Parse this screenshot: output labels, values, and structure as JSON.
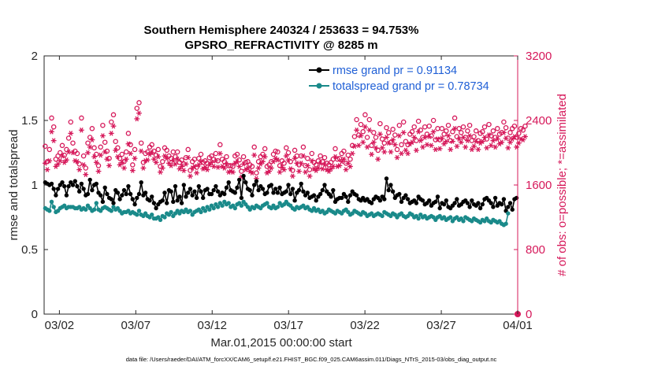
{
  "chart_data": {
    "type": "line",
    "title": "Southern Hemisphere 240324 / 253633 = 94.753%",
    "subtitle": "GPSRO_REFRACTIVITY @ 8285 m",
    "xlabel": "Mar.01,2015 00:00:00 start",
    "ylabel_left": "rmse and totalspread",
    "ylabel_right": "# of obs: o=possible; *=assimilated",
    "footer": "data file: /Users/raeder/DAI/ATM_forcXX/CAM6_setup/f.e21.FHIST_BGC.f09_025.CAM6assim.011/Diags_NTrS_2015-03/obs_diag_output.nc",
    "x_range": [
      0,
      31
    ],
    "x_ticks": [
      {
        "x": 1,
        "label": "03/02"
      },
      {
        "x": 6,
        "label": "03/07"
      },
      {
        "x": 11,
        "label": "03/12"
      },
      {
        "x": 16,
        "label": "03/17"
      },
      {
        "x": 21,
        "label": "03/22"
      },
      {
        "x": 26,
        "label": "03/27"
      },
      {
        "x": 31,
        "label": "04/01"
      }
    ],
    "ylim_left": [
      0,
      2
    ],
    "yticks_left": [
      "0",
      "0.5",
      "1",
      "1.5",
      "2"
    ],
    "ylim_right": [
      0,
      3200
    ],
    "yticks_right": [
      "0",
      "800",
      "1600",
      "2400",
      "3200"
    ],
    "grid": false,
    "legend_position": "top-right",
    "series": [
      {
        "name": "rmse grand pr = 0.91134",
        "color": "#000000",
        "axis": "left",
        "values": [
          1.02,
          1.01,
          1.0,
          1.01,
          0.97,
          0.92,
          0.97,
          1.0,
          1.02,
          0.99,
          0.92,
          0.99,
          1.02,
          1.0,
          1.03,
          0.99,
          0.95,
          1.01,
          0.97,
          0.92,
          0.93,
          1.04,
          0.96,
          1.0,
          1.01,
          0.94,
          0.92,
          0.87,
          0.98,
          0.93,
          0.9,
          0.89,
          0.86,
          0.96,
          0.94,
          0.89,
          0.92,
          0.96,
          0.93,
          0.99,
          0.93,
          0.89,
          0.85,
          0.9,
          0.93,
          1.02,
          0.92,
          0.94,
          0.89,
          0.88,
          0.91,
          0.86,
          0.82,
          0.85,
          0.87,
          0.88,
          0.94,
          0.86,
          0.96,
          0.95,
          0.87,
          0.99,
          0.88,
          0.91,
          0.86,
          1.0,
          0.91,
          0.94,
          0.97,
          0.92,
          0.95,
          0.9,
          0.99,
          0.95,
          0.9,
          0.96,
          0.97,
          0.93,
          0.93,
          0.96,
          0.99,
          0.95,
          0.92,
          0.94,
          0.93,
          0.98,
          1.02,
          0.96,
          0.95,
          0.94,
          0.98,
          1.04,
          0.9,
          1.07,
          1.02,
          0.97,
          0.96,
          0.92,
          1.0,
          1.03,
          0.96,
          0.99,
          0.97,
          0.93,
          0.94,
          0.99,
          1.0,
          0.94,
          0.97,
          0.94,
          0.98,
          0.93,
          0.94,
          0.95,
          1.0,
          0.93,
          0.97,
          0.88,
          0.94,
          0.96,
          1.01,
          0.95,
          0.92,
          0.94,
          0.9,
          0.91,
          0.92,
          0.88,
          0.91,
          0.93,
          0.96,
          1.0,
          0.95,
          0.93,
          0.91,
          0.96,
          0.87,
          0.89,
          0.9,
          0.9,
          0.93,
          0.91,
          0.87,
          0.92,
          0.95,
          0.93,
          0.92,
          0.89,
          0.88,
          0.9,
          0.88,
          0.89,
          0.87,
          0.86,
          0.89,
          0.91,
          0.9,
          0.88,
          0.91,
          0.89,
          1.05,
          0.96,
          1.0,
          0.95,
          0.9,
          0.92,
          0.93,
          0.87,
          0.9,
          0.92,
          0.89,
          0.86,
          0.87,
          0.88,
          0.86,
          0.91,
          0.89,
          0.88,
          0.85,
          0.86,
          0.88,
          0.84,
          0.86,
          0.87,
          0.91,
          0.82,
          0.86,
          0.85,
          0.88,
          0.83,
          0.82,
          0.84,
          0.86,
          0.89,
          0.84,
          0.85,
          0.87,
          0.88,
          0.86,
          0.83,
          0.88,
          0.85,
          0.84,
          0.86,
          0.82,
          0.85,
          0.89,
          0.9,
          0.88,
          0.86,
          0.83,
          0.9,
          0.84,
          0.86,
          0.85,
          0.89,
          0.8,
          0.83,
          0.86,
          0.81,
          0.89,
          0.9
        ]
      },
      {
        "name": "totalspread grand pr = 0.78734",
        "color": "#1a8a8a",
        "axis": "left",
        "values": [
          0.82,
          0.81,
          0.8,
          0.87,
          0.83,
          0.79,
          0.8,
          0.82,
          0.83,
          0.84,
          0.82,
          0.83,
          0.83,
          0.83,
          0.82,
          0.82,
          0.83,
          0.81,
          0.82,
          0.81,
          0.84,
          0.82,
          0.8,
          0.81,
          0.86,
          0.81,
          0.8,
          0.82,
          0.83,
          0.82,
          0.81,
          0.8,
          0.83,
          0.81,
          0.82,
          0.8,
          0.78,
          0.79,
          0.79,
          0.8,
          0.78,
          0.79,
          0.78,
          0.77,
          0.8,
          0.77,
          0.76,
          0.78,
          0.76,
          0.75,
          0.77,
          0.74,
          0.74,
          0.75,
          0.73,
          0.76,
          0.75,
          0.78,
          0.77,
          0.79,
          0.76,
          0.78,
          0.8,
          0.78,
          0.8,
          0.79,
          0.81,
          0.79,
          0.8,
          0.77,
          0.79,
          0.8,
          0.81,
          0.79,
          0.82,
          0.8,
          0.83,
          0.81,
          0.84,
          0.82,
          0.85,
          0.83,
          0.86,
          0.84,
          0.87,
          0.85,
          0.86,
          0.83,
          0.84,
          0.82,
          0.85,
          0.86,
          0.84,
          0.87,
          0.85,
          0.83,
          0.81,
          0.83,
          0.82,
          0.84,
          0.83,
          0.82,
          0.84,
          0.85,
          0.86,
          0.83,
          0.82,
          0.84,
          0.82,
          0.83,
          0.86,
          0.84,
          0.85,
          0.87,
          0.85,
          0.84,
          0.82,
          0.81,
          0.83,
          0.82,
          0.83,
          0.84,
          0.82,
          0.83,
          0.81,
          0.8,
          0.82,
          0.8,
          0.81,
          0.79,
          0.8,
          0.78,
          0.79,
          0.81,
          0.8,
          0.79,
          0.78,
          0.8,
          0.79,
          0.78,
          0.8,
          0.81,
          0.79,
          0.77,
          0.78,
          0.8,
          0.79,
          0.78,
          0.77,
          0.79,
          0.78,
          0.76,
          0.77,
          0.78,
          0.76,
          0.77,
          0.78,
          0.77,
          0.76,
          0.79,
          0.78,
          0.77,
          0.76,
          0.78,
          0.77,
          0.75,
          0.77,
          0.78,
          0.76,
          0.75,
          0.76,
          0.78,
          0.77,
          0.75,
          0.76,
          0.74,
          0.77,
          0.75,
          0.76,
          0.74,
          0.75,
          0.76,
          0.75,
          0.73,
          0.75,
          0.76,
          0.74,
          0.75,
          0.73,
          0.74,
          0.75,
          0.72,
          0.74,
          0.75,
          0.73,
          0.74,
          0.72,
          0.75,
          0.74,
          0.73,
          0.72,
          0.74,
          0.73,
          0.72,
          0.71,
          0.73,
          0.72,
          0.74,
          0.72,
          0.71,
          0.73,
          0.72,
          0.71,
          0.72,
          0.7,
          0.69,
          0.7,
          0.78
        ]
      }
    ],
    "obs_possible": {
      "marker": "o",
      "color": "#d6185a",
      "axis": "right",
      "values": [
        2080,
        1890,
        2040,
        2430,
        2320,
        1920,
        1960,
        2000,
        2090,
        1970,
        2040,
        2180,
        2380,
        2120,
        2020,
        1990,
        1860,
        2430,
        1960,
        1810,
        2120,
        2190,
        2300,
        2060,
        1980,
        1840,
        2070,
        2340,
        2130,
        2020,
        1930,
        2380,
        2470,
        2140,
        2060,
        1930,
        1980,
        1890,
        2010,
        2240,
        2100,
        1850,
        2040,
        2550,
        2620,
        2120,
        1880,
        1990,
        2010,
        2070,
        2100,
        2020,
        1970,
        2040,
        1830,
        1890,
        2060,
        2030,
        1960,
        1930,
        2010,
        1950,
        2010,
        1880,
        1910,
        1860,
        1940,
        2040,
        1780,
        1890,
        1920,
        1820,
        1930,
        1980,
        1880,
        1900,
        1870,
        1940,
        1960,
        1920,
        1990,
        1900,
        2100,
        1920,
        1890,
        1950,
        1840,
        1840,
        1830,
        1960,
        1980,
        1910,
        1770,
        1950,
        1880,
        1890,
        1850,
        1830,
        2070,
        1750,
        1890,
        1950,
        1980,
        2050,
        1830,
        1850,
        1890,
        1980,
        2020,
        2010,
        1840,
        1900,
        1870,
        2060,
        2000,
        1890,
        1780,
        2030,
        1960,
        1850,
        1960,
        2070,
        1840,
        1930,
        1790,
        1990,
        1880,
        1850,
        1900,
        1960,
        1890,
        1940,
        1870,
        1850,
        1880,
        1920,
        2050,
        1920,
        1930,
        1990,
        2020,
        1870,
        1970,
        1920,
        2090,
        2200,
        2410,
        2220,
        2350,
        2260,
        2470,
        2190,
        2410,
        2090,
        2250,
        2190,
        2030,
        2360,
        2170,
        2120,
        2310,
        2250,
        2130,
        2290,
        2220,
        2040,
        2340,
        2100,
        2380,
        2140,
        2100,
        2230,
        2260,
        2320,
        2150,
        2390,
        2280,
        2190,
        2320,
        2230,
        2330,
        2210,
        2400,
        2160,
        2300,
        2160,
        2300,
        2230,
        2270,
        2340,
        2150,
        2260,
        2430,
        2200,
        2300,
        2250,
        2320,
        2190,
        2270,
        2340,
        2150,
        2200,
        2270,
        2150,
        2240,
        2260,
        2320,
        2170,
        2350,
        2210,
        2270,
        2190,
        2300,
        2230,
        2250,
        2380,
        2310,
        2180,
        2250,
        2300,
        2330,
        2190,
        2240,
        2300,
        2280,
        2330
      ]
    },
    "obs_assimilated": {
      "marker": "*",
      "color": "#d6185a",
      "axis": "right",
      "values": [
        1870,
        1790,
        1900,
        2260,
        2150,
        1830,
        1860,
        1900,
        1960,
        1880,
        1910,
        2010,
        2240,
        2000,
        1900,
        1890,
        1790,
        2280,
        1850,
        1730,
        2000,
        2070,
        2160,
        1950,
        1880,
        1770,
        1970,
        2210,
        2010,
        1920,
        1840,
        2240,
        2330,
        2030,
        1950,
        1850,
        1880,
        1810,
        1920,
        2110,
        1990,
        1780,
        1930,
        2420,
        2490,
        2020,
        1810,
        1900,
        1910,
        1980,
        2000,
        1920,
        1880,
        1950,
        1760,
        1810,
        1960,
        1930,
        1870,
        1840,
        1900,
        1860,
        1920,
        1800,
        1830,
        1780,
        1860,
        1940,
        1710,
        1810,
        1830,
        1750,
        1850,
        1890,
        1800,
        1820,
        1790,
        1850,
        1880,
        1830,
        1900,
        1820,
        1990,
        1830,
        1810,
        1860,
        1760,
        1770,
        1760,
        1870,
        1890,
        1830,
        1700,
        1860,
        1790,
        1810,
        1770,
        1750,
        1970,
        1680,
        1810,
        1860,
        1890,
        1950,
        1750,
        1770,
        1810,
        1890,
        1930,
        1910,
        1760,
        1820,
        1790,
        1960,
        1910,
        1800,
        1710,
        1930,
        1870,
        1770,
        1870,
        1960,
        1760,
        1840,
        1710,
        1900,
        1800,
        1780,
        1810,
        1870,
        1800,
        1850,
        1790,
        1770,
        1800,
        1830,
        1950,
        1830,
        1840,
        1890,
        1920,
        1790,
        1870,
        1830,
        1990,
        2080,
        2280,
        2090,
        2210,
        2130,
        2320,
        2070,
        2280,
        1980,
        2130,
        2060,
        1920,
        2230,
        2060,
        2010,
        2190,
        2120,
        2010,
        2160,
        2100,
        1940,
        2210,
        1990,
        2250,
        2030,
        1990,
        2110,
        2130,
        2190,
        2030,
        2260,
        2150,
        2070,
        2190,
        2100,
        2200,
        2090,
        2260,
        2040,
        2170,
        2050,
        2180,
        2110,
        2140,
        2210,
        2040,
        2140,
        2300,
        2080,
        2170,
        2130,
        2190,
        2070,
        2150,
        2210,
        2040,
        2080,
        2140,
        2040,
        2120,
        2140,
        2190,
        2060,
        2220,
        2090,
        2150,
        2070,
        2170,
        2110,
        2130,
        2250,
        2180,
        2060,
        2130,
        2170,
        2200,
        2070,
        2120,
        2170,
        2160,
        2200
      ]
    },
    "legend": [
      {
        "label": "rmse grand pr = 0.91134",
        "color": "#000000",
        "text_color": "#1f5fd6"
      },
      {
        "label": "totalspread grand pr = 0.78734",
        "color": "#1a8a8a",
        "text_color": "#1f5fd6"
      }
    ],
    "colors": {
      "axis_left": "#262626",
      "axis_right": "#d6185a",
      "legend_text": "#1f5fd6"
    }
  }
}
